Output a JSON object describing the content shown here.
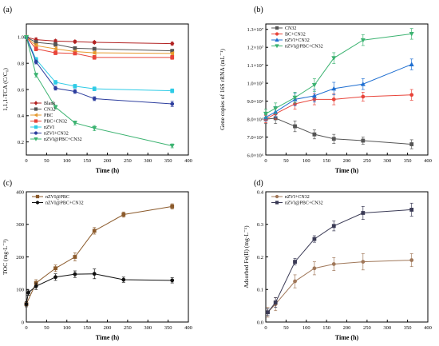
{
  "chart_data": [
    {
      "panel": "(a)",
      "type": "line",
      "xlabel": "Time (h)",
      "ylabel": "1,1,1-TCA (C/C₀)",
      "xlim": [
        0,
        400
      ],
      "ylim": [
        0.1,
        1.1
      ],
      "xticks": [
        0,
        50,
        100,
        150,
        200,
        250,
        300,
        350,
        400
      ],
      "yticks": [
        0.2,
        0.4,
        0.6,
        0.8,
        1.0
      ],
      "ytick_labels": [
        "0.2",
        "0.4",
        "0.6",
        "0.8",
        "1.0"
      ],
      "legend_position": "bottom-left",
      "series": [
        {
          "name": "Blank",
          "color": "#b22222",
          "marker": "diamond",
          "x": [
            0,
            24,
            72,
            120,
            168,
            360
          ],
          "y": [
            1.0,
            0.98,
            0.97,
            0.965,
            0.96,
            0.95
          ],
          "err": [
            0.01,
            0.015,
            0.01,
            0.01,
            0.01,
            0.01
          ]
        },
        {
          "name": "CN32",
          "color": "#555555",
          "marker": "square",
          "x": [
            0,
            24,
            72,
            120,
            168,
            360
          ],
          "y": [
            1.0,
            0.96,
            0.945,
            0.915,
            0.91,
            0.895
          ],
          "err": [
            0.01,
            0.015,
            0.015,
            0.01,
            0.01,
            0.01
          ]
        },
        {
          "name": "PBC",
          "color": "#e69a2e",
          "marker": "triangle-left",
          "x": [
            0,
            24,
            72,
            120,
            168,
            360
          ],
          "y": [
            1.0,
            0.935,
            0.91,
            0.89,
            0.88,
            0.875
          ],
          "err": [
            0.01,
            0.015,
            0.015,
            0.01,
            0.01,
            0.01
          ]
        },
        {
          "name": "PBC+CN32",
          "color": "#e8443a",
          "marker": "square",
          "x": [
            0,
            24,
            72,
            120,
            168,
            360
          ],
          "y": [
            1.0,
            0.91,
            0.88,
            0.875,
            0.845,
            0.845
          ],
          "err": [
            0.01,
            0.015,
            0.015,
            0.01,
            0.015,
            0.015
          ]
        },
        {
          "name": "nZVI",
          "color": "#2ecbe6",
          "marker": "square",
          "x": [
            0,
            24,
            72,
            120,
            168,
            360
          ],
          "y": [
            1.0,
            0.83,
            0.655,
            0.625,
            0.605,
            0.59
          ],
          "err": [
            0.01,
            0.015,
            0.015,
            0.015,
            0.015,
            0.015
          ]
        },
        {
          "name": "nZVI+CN32",
          "color": "#2d3e9e",
          "marker": "circle",
          "x": [
            0,
            24,
            72,
            120,
            168,
            360
          ],
          "y": [
            1.0,
            0.81,
            0.61,
            0.585,
            0.53,
            0.49
          ],
          "err": [
            0.01,
            0.015,
            0.015,
            0.015,
            0.015,
            0.02
          ]
        },
        {
          "name": "nZVI@PBC+CN32",
          "color": "#3cb371",
          "marker": "triangle-down",
          "x": [
            0,
            24,
            72,
            120,
            168,
            360
          ],
          "y": [
            1.0,
            0.71,
            0.465,
            0.345,
            0.305,
            0.17
          ],
          "err": [
            0.01,
            0.015,
            0.015,
            0.015,
            0.02,
            0.015
          ]
        }
      ]
    },
    {
      "panel": "(b)",
      "type": "line",
      "xlabel": "Time (h)",
      "ylabel": "Gene copies of 16S rRNA (mL⁻¹)",
      "xlim": [
        0,
        400
      ],
      "ylim": [
        6.0,
        13.3
      ],
      "xticks": [
        0,
        50,
        100,
        150,
        200,
        250,
        300,
        350,
        400
      ],
      "yticks": [
        6,
        7,
        8,
        9,
        10,
        11,
        12,
        13
      ],
      "ytick_labels": [
        "6.0×10⁶",
        "7.0×10⁶",
        "8.0×10⁶",
        "9.0×10⁶",
        "1.0×10⁷",
        "1.1×10⁷",
        "1.2×10⁷",
        "1.3×10⁷"
      ],
      "legend_position": "top-left",
      "series": [
        {
          "name": "CN32",
          "color": "#555555",
          "marker": "square",
          "x": [
            0,
            24,
            72,
            120,
            168,
            240,
            360
          ],
          "y": [
            8.0,
            8.05,
            7.6,
            7.15,
            6.9,
            6.8,
            6.6
          ],
          "err": [
            0.25,
            0.3,
            0.3,
            0.25,
            0.25,
            0.2,
            0.25
          ]
        },
        {
          "name": "BC+CN32",
          "color": "#e8443a",
          "marker": "circle",
          "x": [
            0,
            24,
            72,
            120,
            168,
            240,
            360
          ],
          "y": [
            8.0,
            8.3,
            8.85,
            9.1,
            9.1,
            9.25,
            9.35
          ],
          "err": [
            0.2,
            0.3,
            0.3,
            0.3,
            0.3,
            0.25,
            0.3
          ]
        },
        {
          "name": "nZVI+CN32",
          "color": "#1f6fd1",
          "marker": "triangle-up",
          "x": [
            0,
            24,
            72,
            120,
            168,
            240,
            360
          ],
          "y": [
            8.1,
            8.4,
            9.1,
            9.3,
            9.7,
            9.95,
            11.05
          ],
          "err": [
            0.2,
            0.3,
            0.35,
            0.35,
            0.35,
            0.3,
            0.3
          ]
        },
        {
          "name": "nZVI@PBC+CN32",
          "color": "#3cb371",
          "marker": "triangle-down",
          "x": [
            0,
            24,
            72,
            120,
            168,
            240,
            360
          ],
          "y": [
            8.3,
            8.6,
            9.2,
            9.9,
            11.4,
            12.4,
            12.75
          ],
          "err": [
            0.25,
            0.3,
            0.3,
            0.35,
            0.3,
            0.3,
            0.3
          ]
        }
      ]
    },
    {
      "panel": "(c)",
      "type": "line",
      "xlabel": "Time (h)",
      "ylabel": "TOC (mg·L⁻¹)",
      "xlim": [
        0,
        400
      ],
      "ylim": [
        0,
        400
      ],
      "xticks": [
        0,
        50,
        100,
        150,
        200,
        250,
        300,
        350,
        400
      ],
      "yticks": [
        0,
        100,
        200,
        300,
        400
      ],
      "ytick_labels": [
        "0",
        "100",
        "200",
        "300",
        "400"
      ],
      "legend_position": "top-left",
      "series": [
        {
          "name": "nZVI@PBC",
          "color": "#8b5a2b",
          "marker": "square",
          "x": [
            0,
            24,
            72,
            120,
            168,
            240,
            360
          ],
          "y": [
            55,
            120,
            165,
            200,
            280,
            330,
            355
          ],
          "err": [
            8,
            10,
            10,
            12,
            10,
            8,
            8
          ]
        },
        {
          "name": "nZVI@PBC+CN32",
          "color": "#111111",
          "marker": "circle",
          "x": [
            0,
            5,
            24,
            72,
            120,
            168,
            240,
            360
          ],
          "y": [
            55,
            90,
            110,
            138,
            147,
            148,
            130,
            128
          ],
          "err": [
            8,
            8,
            10,
            10,
            10,
            15,
            8,
            8
          ]
        }
      ]
    },
    {
      "panel": "(d)",
      "type": "line",
      "xlabel": "Time (h)",
      "ylabel": "Adsorbed Fe(II) (mg·L⁻¹)",
      "xlim": [
        0,
        400
      ],
      "ylim": [
        0.0,
        0.4
      ],
      "xticks": [
        0,
        50,
        100,
        150,
        200,
        250,
        300,
        350,
        400
      ],
      "yticks": [
        0.0,
        0.1,
        0.2,
        0.3,
        0.4
      ],
      "ytick_labels": [
        "0.0",
        "0.1",
        "0.2",
        "0.3",
        "0.4"
      ],
      "legend_position": "top-left",
      "series": [
        {
          "name": "nZVI+CN32",
          "color": "#a0785a",
          "marker": "circle",
          "x": [
            5,
            24,
            72,
            120,
            168,
            240,
            360
          ],
          "y": [
            0.03,
            0.055,
            0.125,
            0.165,
            0.178,
            0.185,
            0.19
          ],
          "err": [
            0.015,
            0.02,
            0.02,
            0.02,
            0.02,
            0.025,
            0.02
          ]
        },
        {
          "name": "nZVI@PBC+CN32",
          "color": "#3a3a55",
          "marker": "square",
          "x": [
            5,
            24,
            72,
            120,
            168,
            240,
            360
          ],
          "y": [
            0.03,
            0.06,
            0.185,
            0.255,
            0.295,
            0.335,
            0.345
          ],
          "err": [
            0.01,
            0.015,
            0.01,
            0.01,
            0.015,
            0.02,
            0.02
          ]
        }
      ]
    }
  ]
}
